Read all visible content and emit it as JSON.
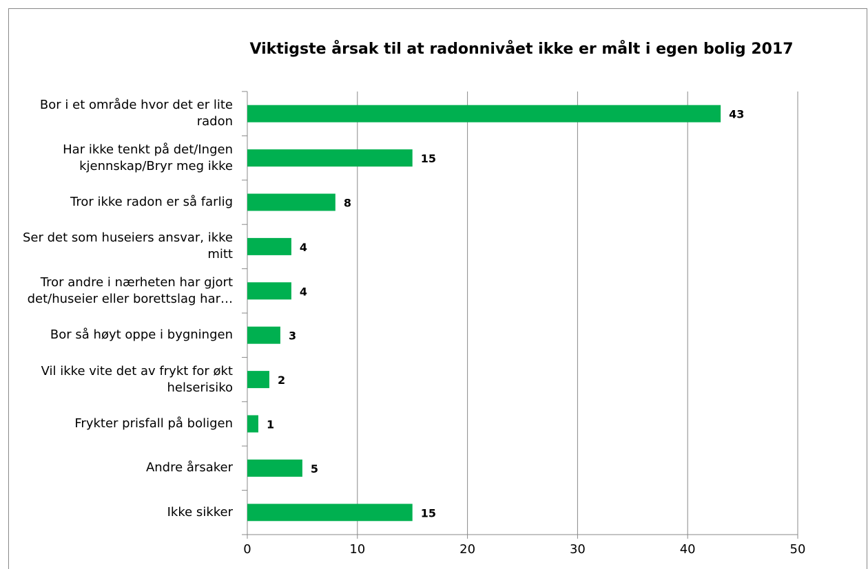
{
  "chart_data": {
    "type": "bar",
    "orientation": "horizontal",
    "title": "Viktigste årsak til at radonnivået ikke er målt i egen bolig 2017",
    "categories": [
      "Bor i et område hvor det er lite radon",
      "Har ikke tenkt på det/Ingen kjennskap/Bryr meg ikke",
      "Tror ikke radon er så farlig",
      "Ser det som huseiers ansvar, ikke mitt",
      "Tror andre i nærheten har gjort det/huseier eller borettslag har…",
      "Bor så høyt oppe i bygningen",
      "Vil ikke vite det av frykt for økt helserisiko",
      "Frykter prisfall på boligen",
      "Andre årsaker",
      "Ikke sikker"
    ],
    "values": [
      43,
      15,
      8,
      4,
      4,
      3,
      2,
      1,
      5,
      15
    ],
    "color": "#00b050",
    "xlim": [
      0,
      50
    ],
    "xticks": [
      0,
      10,
      20,
      30,
      40,
      50
    ],
    "grid": true
  }
}
